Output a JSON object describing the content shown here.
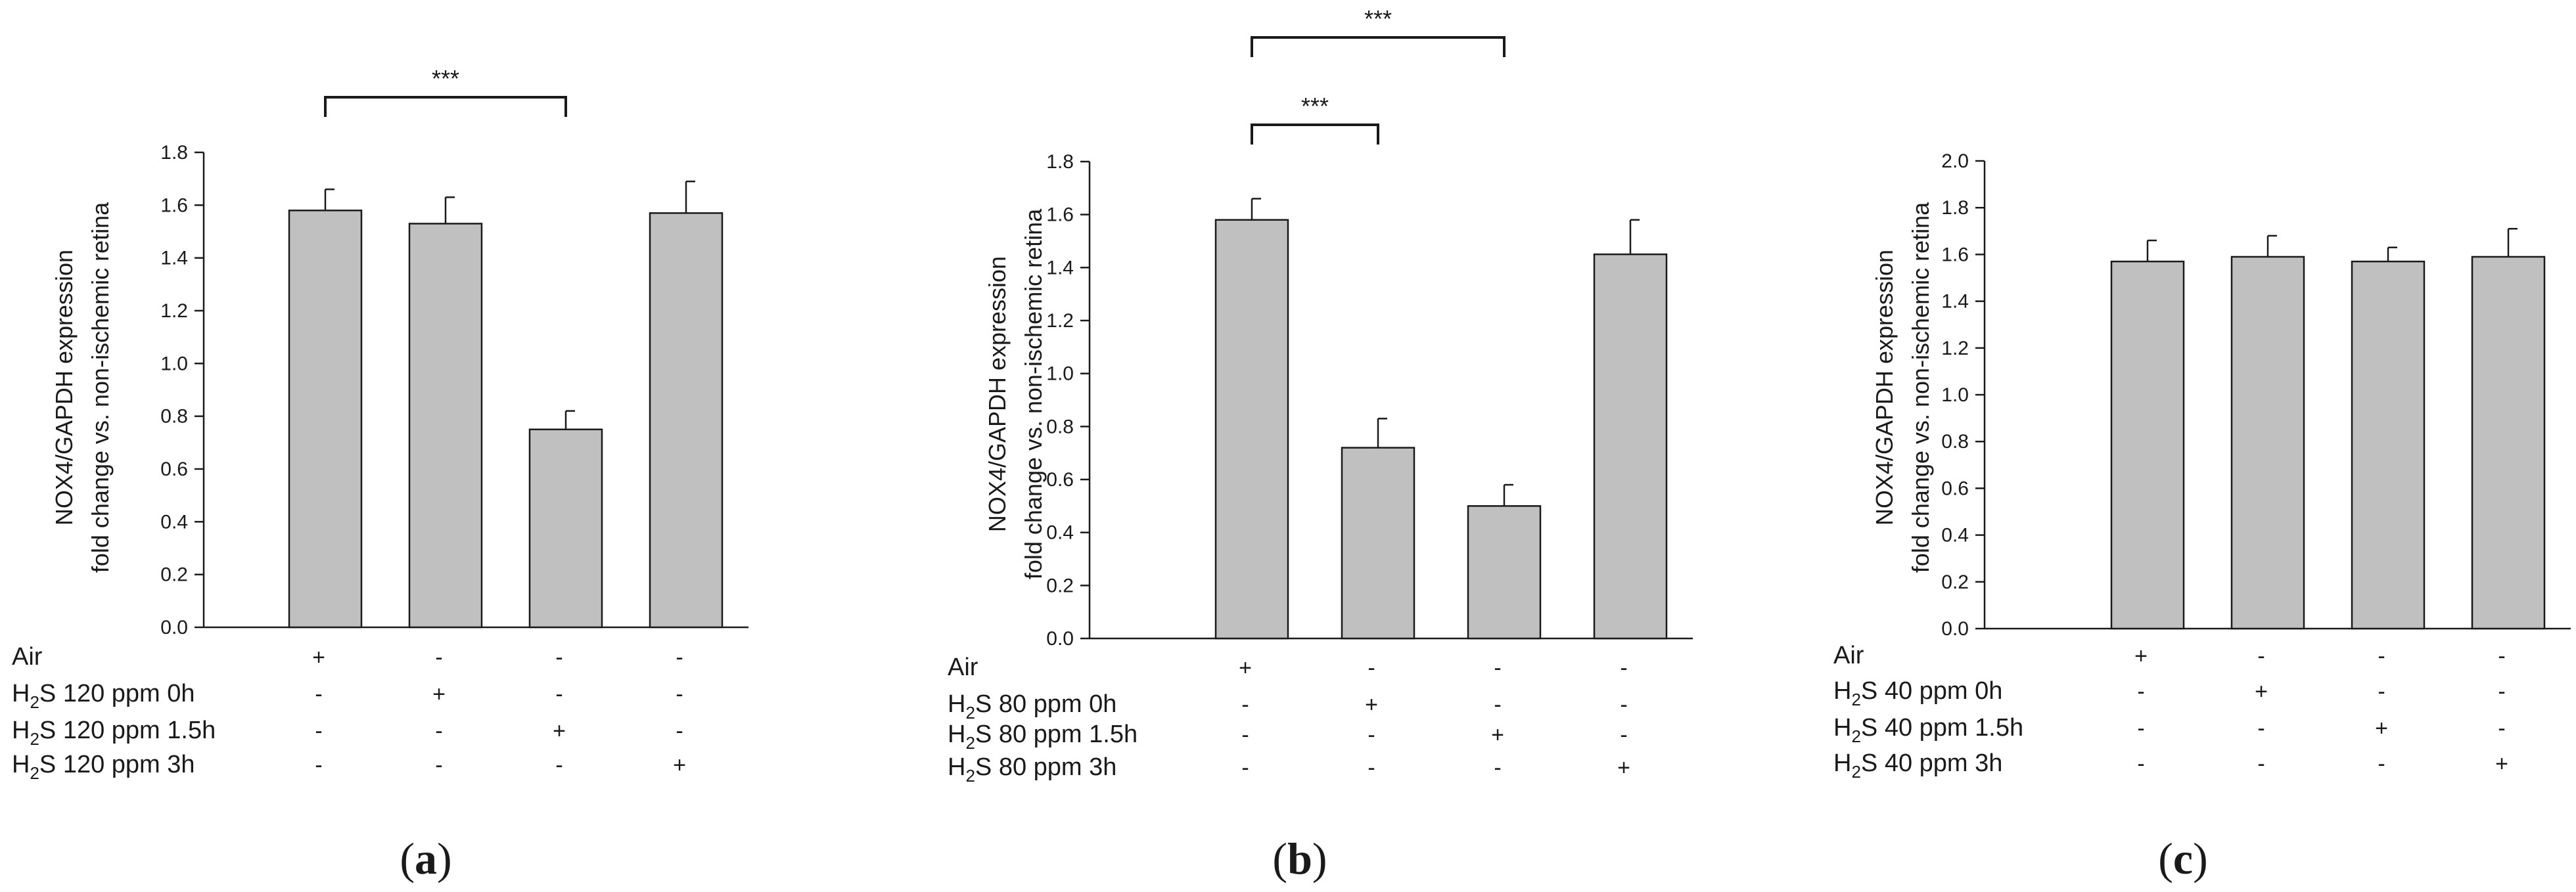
{
  "chart_data": [
    {
      "panel": "(a)",
      "panel_prefix": "(",
      "panel_letter": "a",
      "panel_suffix": ")",
      "type": "bar",
      "ylabel_lines": [
        "NOX4/GAPDH  expression",
        "fold change vs.  non-ischemic retina"
      ],
      "ylim": [
        0,
        1.8
      ],
      "y_ticks": [
        "0.0",
        "0.2",
        "0.4",
        "0.6",
        "0.8",
        "1.0",
        "1.2",
        "1.4",
        "1.6",
        "1.8"
      ],
      "categories": [
        "Air",
        "H2S 120 ppm 0h",
        "H2S 120 ppm 1.5h",
        "H2S 120 ppm 3h"
      ],
      "values": [
        1.58,
        1.53,
        0.75,
        1.57
      ],
      "errors": [
        0.08,
        0.1,
        0.07,
        0.12
      ],
      "conditions": [
        {
          "prefix": "Air",
          "rest": "",
          "signs": [
            "+",
            "-",
            "-",
            "-"
          ]
        },
        {
          "prefix": "H",
          "rest": "S 120 ppm 0h",
          "signs": [
            "-",
            "+",
            "-",
            "-"
          ]
        },
        {
          "prefix": "H",
          "rest": "S 120 ppm 1.5h",
          "signs": [
            "-",
            "-",
            "+",
            "-"
          ]
        },
        {
          "prefix": "H",
          "rest": "S 120 ppm 3h",
          "signs": [
            "-",
            "-",
            "-",
            "+"
          ]
        }
      ],
      "significance": [
        {
          "from": 0,
          "to": 2,
          "label": "***"
        }
      ]
    },
    {
      "panel": "(b)",
      "panel_prefix": "(",
      "panel_letter": "b",
      "panel_suffix": ")",
      "type": "bar",
      "ylabel_lines": [
        "NOX4/GAPDH  expression",
        "fold change vs.  non-ischemic retina"
      ],
      "ylim": [
        0,
        1.8
      ],
      "y_ticks": [
        "0.0",
        "0.2",
        "0.4",
        "0.6",
        "0.8",
        "1.0",
        "1.2",
        "1.4",
        "1.6",
        "1.8"
      ],
      "categories": [
        "Air",
        "H2S 80 ppm 0h",
        "H2S 80 ppm 1.5h",
        "H2S 80 ppm 3h"
      ],
      "values": [
        1.58,
        0.72,
        0.5,
        1.45
      ],
      "errors": [
        0.08,
        0.11,
        0.08,
        0.13
      ],
      "conditions": [
        {
          "prefix": "Air",
          "rest": "",
          "signs": [
            "+",
            "-",
            "-",
            "-"
          ]
        },
        {
          "prefix": "H",
          "rest": "S 80 ppm 0h",
          "signs": [
            "-",
            "+",
            "-",
            "-"
          ]
        },
        {
          "prefix": "H",
          "rest": "S 80 ppm 1.5h",
          "signs": [
            "-",
            "-",
            "+",
            "-"
          ]
        },
        {
          "prefix": "H",
          "rest": "S 80 ppm 3h",
          "signs": [
            "-",
            "-",
            "-",
            "+"
          ]
        }
      ],
      "significance": [
        {
          "from": 0,
          "to": 1,
          "label": "***"
        },
        {
          "from": 0,
          "to": 2,
          "label": "***"
        }
      ]
    },
    {
      "panel": "(c)",
      "panel_prefix": "(",
      "panel_letter": "c",
      "panel_suffix": ")",
      "type": "bar",
      "ylabel_lines": [
        "NOX4/GAPDH  expression",
        "fold change vs.  non-ischemic retina"
      ],
      "ylim": [
        0,
        2.0
      ],
      "y_ticks": [
        "0.0",
        "0.2",
        "0.4",
        "0.6",
        "0.8",
        "1.0",
        "1.2",
        "1.4",
        "1.6",
        "1.8",
        "2.0"
      ],
      "categories": [
        "Air",
        "H2S 40 ppm 0h",
        "H2S 40 ppm 1.5h",
        "H2S 40 ppm 3h"
      ],
      "values": [
        1.57,
        1.59,
        1.57,
        1.59
      ],
      "errors": [
        0.09,
        0.09,
        0.06,
        0.12
      ],
      "conditions": [
        {
          "prefix": "Air",
          "rest": "",
          "signs": [
            "+",
            "-",
            "-",
            "-"
          ]
        },
        {
          "prefix": "H",
          "rest": "S 40 ppm 0h",
          "signs": [
            "-",
            "+",
            "-",
            "-"
          ]
        },
        {
          "prefix": "H",
          "rest": "S 40 ppm 1.5h",
          "signs": [
            "-",
            "-",
            "+",
            "-"
          ]
        },
        {
          "prefix": "H",
          "rest": "S 40 ppm 3h",
          "signs": [
            "-",
            "-",
            "-",
            "+"
          ]
        }
      ],
      "significance": []
    }
  ],
  "subscript": "2",
  "colors": {
    "bar_fill": "#c0c0c0",
    "bar_stroke": "#1a1a1a",
    "axis": "#1a1a1a",
    "text": "#1a1a1a"
  }
}
